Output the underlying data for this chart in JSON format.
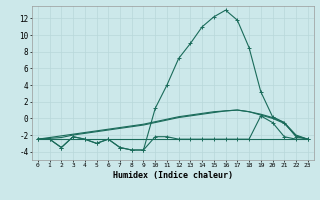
{
  "xlabel": "Humidex (Indice chaleur)",
  "x": [
    0,
    1,
    2,
    3,
    4,
    5,
    6,
    7,
    8,
    9,
    10,
    11,
    12,
    13,
    14,
    15,
    16,
    17,
    18,
    19,
    20,
    21,
    22,
    23
  ],
  "line_flat": [
    -2.5,
    -2.5,
    -2.5,
    -2.5,
    -2.5,
    -2.5,
    -2.5,
    -2.5,
    -2.5,
    -2.5,
    -2.5,
    -2.5,
    -2.5,
    -2.5,
    -2.5,
    -2.5,
    -2.5,
    -2.5,
    -2.5,
    -2.5,
    -2.5,
    -2.5,
    -2.5,
    -2.5
  ],
  "line_noisy": [
    -2.5,
    -2.5,
    -3.5,
    -2.2,
    -2.5,
    -3.0,
    -2.5,
    -3.5,
    -3.8,
    -3.8,
    -2.2,
    -2.2,
    -2.5,
    -2.5,
    -2.5,
    -2.5,
    -2.5,
    -2.5,
    -2.5,
    0.3,
    -0.5,
    -2.2,
    -2.5,
    -2.5
  ],
  "line_humidex": [
    -2.5,
    -2.5,
    -3.5,
    -2.2,
    -2.5,
    -3.0,
    -2.5,
    -3.5,
    -3.8,
    -3.8,
    1.2,
    4.0,
    7.2,
    9.0,
    11.0,
    12.2,
    13.0,
    11.8,
    8.5,
    3.2,
    0.2,
    -0.5,
    -2.2,
    -2.5
  ],
  "line_trend1": [
    -2.5,
    -2.3,
    -2.1,
    -1.9,
    -1.7,
    -1.5,
    -1.3,
    -1.1,
    -0.9,
    -0.7,
    -0.4,
    -0.1,
    0.2,
    0.4,
    0.6,
    0.8,
    0.9,
    1.0,
    0.8,
    0.5,
    0.1,
    -0.5,
    -2.0,
    -2.5
  ],
  "line_trend2": [
    -2.5,
    -2.4,
    -2.3,
    -2.0,
    -1.8,
    -1.6,
    -1.4,
    -1.2,
    -1.0,
    -0.8,
    -0.5,
    -0.2,
    0.1,
    0.3,
    0.5,
    0.7,
    0.9,
    1.0,
    0.8,
    0.4,
    0.0,
    -0.6,
    -2.1,
    -2.5
  ],
  "line_color": "#1a6b5a",
  "bg_color": "#cce8ea",
  "grid_color": "#b8d8da",
  "ylim": [
    -5,
    13.5
  ],
  "xlim": [
    -0.5,
    23.5
  ],
  "yticks": [
    -4,
    -2,
    0,
    2,
    4,
    6,
    8,
    10,
    12
  ],
  "xticks": [
    0,
    1,
    2,
    3,
    4,
    5,
    6,
    7,
    8,
    9,
    10,
    11,
    12,
    13,
    14,
    15,
    16,
    17,
    18,
    19,
    20,
    21,
    22,
    23
  ]
}
